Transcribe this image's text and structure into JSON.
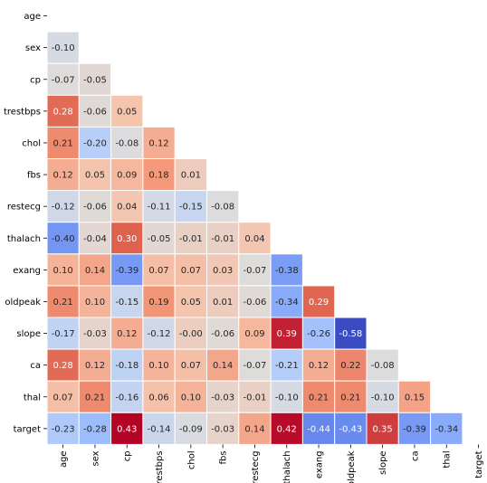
{
  "chart_data": {
    "type": "heatmap",
    "title": "",
    "xlabel": "",
    "ylabel": "",
    "labels": [
      "age",
      "sex",
      "cp",
      "trestbps",
      "chol",
      "fbs",
      "restecg",
      "thalach",
      "exang",
      "oldpeak",
      "slope",
      "ca",
      "thal",
      "target"
    ],
    "value_range": [
      -0.58,
      0.43
    ],
    "mask": "upper-triangle-including-diagonal",
    "colormap": "coolwarm",
    "cell_border_color": "#ffffff",
    "colorbar": false,
    "rows": [
      [],
      [
        "-0.10"
      ],
      [
        "-0.07",
        "-0.05"
      ],
      [
        "0.28",
        "-0.06",
        "0.05"
      ],
      [
        "0.21",
        "-0.20",
        "-0.08",
        "0.12"
      ],
      [
        "0.12",
        "0.05",
        "0.09",
        "0.18",
        "0.01"
      ],
      [
        "-0.12",
        "-0.06",
        "0.04",
        "-0.11",
        "-0.15",
        "-0.08"
      ],
      [
        "-0.40",
        "-0.04",
        "0.30",
        "-0.05",
        "-0.01",
        "-0.01",
        "0.04"
      ],
      [
        "0.10",
        "0.14",
        "-0.39",
        "0.07",
        "0.07",
        "0.03",
        "-0.07",
        "-0.38"
      ],
      [
        "0.21",
        "0.10",
        "-0.15",
        "0.19",
        "0.05",
        "0.01",
        "-0.06",
        "-0.34",
        "0.29"
      ],
      [
        "-0.17",
        "-0.03",
        "0.12",
        "-0.12",
        "-0.00",
        "-0.06",
        "0.09",
        "0.39",
        "-0.26",
        "-0.58"
      ],
      [
        "0.28",
        "0.12",
        "-0.18",
        "0.10",
        "0.07",
        "0.14",
        "-0.07",
        "-0.21",
        "0.12",
        "0.22",
        "-0.08"
      ],
      [
        "0.07",
        "0.21",
        "-0.16",
        "0.06",
        "0.10",
        "-0.03",
        "-0.01",
        "-0.10",
        "0.21",
        "0.21",
        "-0.10",
        "0.15"
      ],
      [
        "-0.23",
        "-0.28",
        "0.43",
        "-0.14",
        "-0.09",
        "-0.03",
        "0.14",
        "0.42",
        "-0.44",
        "-0.43",
        "0.35",
        "-0.39",
        "-0.34"
      ]
    ]
  }
}
